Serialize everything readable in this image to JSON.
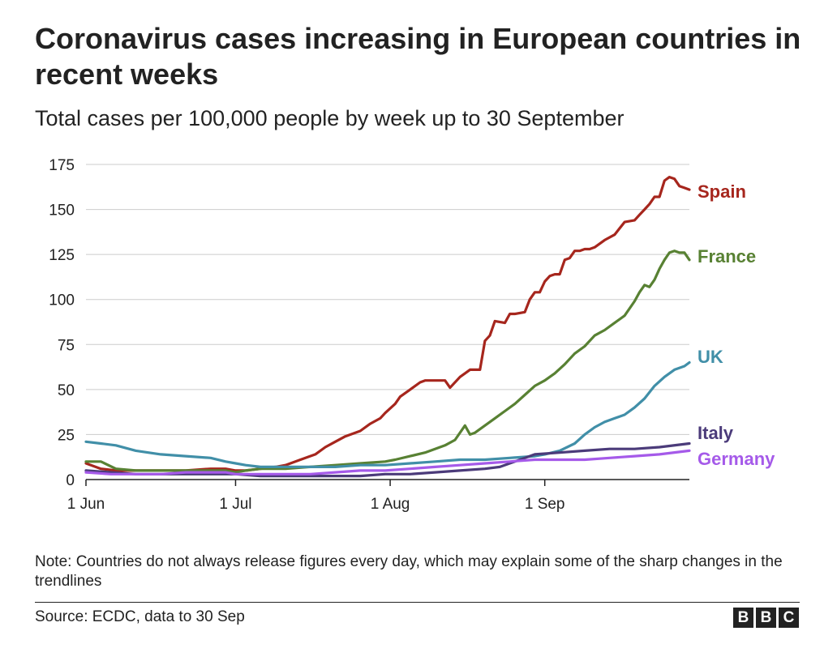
{
  "header": {
    "title": "Coronavirus cases increasing in European countries in recent weeks",
    "subtitle": "Total cases per 100,000 people by week up to 30 September"
  },
  "footer": {
    "note": "Note: Countries do not always release figures every day, which may explain some of the sharp changes in the trendlines",
    "source": "Source: ECDC, data to 30 Sep",
    "logo_letters": [
      "B",
      "B",
      "C"
    ]
  },
  "chart_data": {
    "type": "line",
    "title": "Coronavirus cases increasing in European countries in recent weeks",
    "subtitle": "Total cases per 100,000 people by week up to 30 September",
    "xlabel": "",
    "ylabel": "",
    "x_unit": "days since 1 Jun",
    "xlim": [
      0,
      121
    ],
    "ylim": [
      0,
      175
    ],
    "yticks": [
      0,
      25,
      50,
      75,
      100,
      125,
      150,
      175
    ],
    "xticks": [
      {
        "label": "1 Jun",
        "value": 0
      },
      {
        "label": "1 Jul",
        "value": 30
      },
      {
        "label": "1 Aug",
        "value": 61
      },
      {
        "label": "1 Sep",
        "value": 92
      }
    ],
    "grid": true,
    "legend": "direct labels at line ends (right)",
    "series": [
      {
        "name": "Spain",
        "color": "#a6261d",
        "x": [
          0,
          3,
          6,
          10,
          15,
          20,
          25,
          28,
          30,
          32,
          35,
          38,
          40,
          43,
          46,
          48,
          50,
          52,
          55,
          57,
          59,
          60,
          62,
          63,
          65,
          67,
          68,
          70,
          72,
          73,
          75,
          76,
          77,
          78,
          79,
          80,
          81,
          82,
          84,
          85,
          86,
          88,
          89,
          90,
          91,
          92,
          93,
          94,
          95,
          96,
          97,
          98,
          99,
          100,
          101,
          102,
          104,
          106,
          108,
          110,
          111,
          112,
          113,
          114,
          115,
          116,
          117,
          118,
          119,
          120,
          121
        ],
        "y": [
          9,
          6,
          5,
          5,
          5,
          5,
          6,
          6,
          5,
          5,
          6,
          7,
          8,
          11,
          14,
          18,
          21,
          24,
          27,
          31,
          34,
          37,
          42,
          46,
          50,
          54,
          55,
          55,
          55,
          51,
          57,
          59,
          61,
          61,
          61,
          77,
          80,
          88,
          87,
          92,
          92,
          93,
          100,
          104,
          104,
          110,
          113,
          114,
          114,
          122,
          123,
          127,
          127,
          128,
          128,
          129,
          133,
          136,
          143,
          144,
          147,
          150,
          153,
          157,
          157,
          166,
          168,
          167,
          163,
          162,
          161
        ]
      },
      {
        "name": "France",
        "color": "#588133",
        "x": [
          0,
          3,
          6,
          10,
          15,
          20,
          25,
          28,
          30,
          32,
          35,
          40,
          45,
          50,
          55,
          60,
          62,
          65,
          68,
          70,
          72,
          74,
          76,
          77,
          78,
          80,
          82,
          84,
          86,
          88,
          90,
          92,
          94,
          96,
          98,
          100,
          102,
          104,
          106,
          108,
          110,
          111,
          112,
          113,
          114,
          115,
          116,
          117,
          118,
          119,
          120,
          121
        ],
        "y": [
          10,
          10,
          6,
          5,
          5,
          5,
          5,
          5,
          4,
          5,
          6,
          6,
          7,
          8,
          9,
          10,
          11,
          13,
          15,
          17,
          19,
          22,
          30,
          25,
          26,
          30,
          34,
          38,
          42,
          47,
          52,
          55,
          59,
          64,
          70,
          74,
          80,
          83,
          87,
          91,
          99,
          104,
          108,
          107,
          111,
          117,
          122,
          126,
          127,
          126,
          126,
          122
        ]
      },
      {
        "name": "UK",
        "color": "#418fa8",
        "x": [
          0,
          3,
          6,
          10,
          15,
          20,
          25,
          28,
          30,
          32,
          35,
          40,
          45,
          50,
          55,
          60,
          65,
          70,
          75,
          80,
          85,
          90,
          92,
          95,
          98,
          100,
          102,
          104,
          106,
          108,
          110,
          112,
          114,
          116,
          118,
          120,
          121
        ],
        "y": [
          21,
          20,
          19,
          16,
          14,
          13,
          12,
          10,
          9,
          8,
          7,
          7,
          7,
          7,
          8,
          8,
          9,
          10,
          11,
          11,
          12,
          13,
          14,
          16,
          20,
          25,
          29,
          32,
          34,
          36,
          40,
          45,
          52,
          57,
          61,
          63,
          65
        ]
      },
      {
        "name": "Italy",
        "color": "#4b3b7a",
        "x": [
          0,
          5,
          10,
          15,
          20,
          25,
          28,
          30,
          35,
          40,
          45,
          50,
          55,
          60,
          65,
          70,
          75,
          80,
          83,
          86,
          90,
          95,
          100,
          105,
          110,
          115,
          121
        ],
        "y": [
          5,
          4,
          3,
          3,
          3,
          3,
          3,
          3,
          2,
          2,
          2,
          2,
          2,
          3,
          3,
          4,
          5,
          6,
          7,
          10,
          14,
          15,
          16,
          17,
          17,
          18,
          20
        ]
      },
      {
        "name": "Germany",
        "color": "#a55ae9",
        "x": [
          0,
          5,
          10,
          15,
          20,
          25,
          28,
          30,
          35,
          40,
          45,
          50,
          55,
          60,
          65,
          70,
          75,
          80,
          85,
          90,
          95,
          100,
          105,
          110,
          115,
          121
        ],
        "y": [
          4,
          3,
          3,
          3,
          4,
          4,
          4,
          3,
          3,
          3,
          3,
          4,
          5,
          5,
          6,
          7,
          8,
          9,
          10,
          11,
          11,
          11,
          12,
          13,
          14,
          16
        ]
      }
    ]
  }
}
